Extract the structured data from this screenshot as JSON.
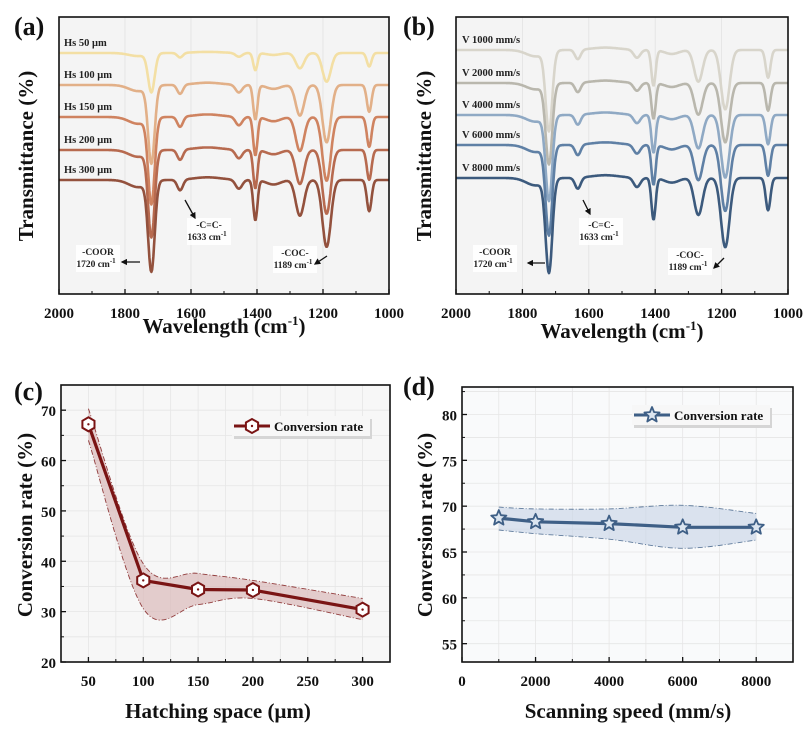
{
  "figure": {
    "panels": [
      "(a)",
      "(b)",
      "(c)",
      "(d)"
    ]
  },
  "chart_data": [
    {
      "id": "a",
      "type": "line",
      "panel_label": "(a)",
      "title": "",
      "xlabel": "Wavelength (cm-1)",
      "xlabel_main": "Wavelength (cm",
      "xlabel_sup": "-1",
      "xlabel_close": ")",
      "ylabel": "Transmittance (%)",
      "xlim": [
        2000,
        1000
      ],
      "x_ticks": [
        2000,
        1800,
        1600,
        1400,
        1200,
        1000
      ],
      "y_ticks": [],
      "grid": true,
      "series": [
        {
          "name": "Hs 50 μm",
          "color": "#f3dfa4",
          "scale": 0.45
        },
        {
          "name": "Hs 100 μm",
          "color": "#e2b088",
          "scale": 0.9
        },
        {
          "name": "Hs 150 μm",
          "color": "#cf8360",
          "scale": 1.0
        },
        {
          "name": "Hs 200 μm",
          "color": "#b76a4f",
          "scale": 1.0
        },
        {
          "name": "Hs 300 μm",
          "color": "#93513d",
          "scale": 1.05
        }
      ],
      "peaks": [
        {
          "x": 1720,
          "depth": 1.0,
          "width": 14
        },
        {
          "x": 1633,
          "depth": 0.12,
          "width": 12
        },
        {
          "x": 1455,
          "depth": 0.1,
          "width": 14
        },
        {
          "x": 1405,
          "depth": 0.45,
          "width": 9
        },
        {
          "x": 1270,
          "depth": 0.4,
          "width": 18
        },
        {
          "x": 1189,
          "depth": 0.75,
          "width": 18
        },
        {
          "x": 1060,
          "depth": 0.35,
          "width": 10
        }
      ],
      "annotations": [
        {
          "line1": "-COOR",
          "line2": "1720 cm",
          "sup": "-1",
          "peak": 1720
        },
        {
          "line1": "-C=C-",
          "line2": "1633 cm",
          "sup": "-1",
          "peak": 1633
        },
        {
          "line1": "-COC-",
          "line2": "1189 cm",
          "sup": "-1",
          "peak": 1189
        }
      ]
    },
    {
      "id": "b",
      "type": "line",
      "panel_label": "(b)",
      "title": "",
      "xlabel": "Wavelength (cm-1)",
      "xlabel_main": "Wavelength (cm",
      "xlabel_sup": "-1",
      "xlabel_close": ")",
      "ylabel": "Transmittance (%)",
      "xlim": [
        2000,
        1000
      ],
      "x_ticks": [
        2000,
        1800,
        1600,
        1400,
        1200,
        1000
      ],
      "y_ticks": [],
      "grid": true,
      "series": [
        {
          "name": "V 1000 mm/s",
          "color": "#d8d5cb",
          "scale": 0.9
        },
        {
          "name": "V 2000 mm/s",
          "color": "#b9b7ad",
          "scale": 0.9
        },
        {
          "name": "V 4000 mm/s",
          "color": "#8fa9c4",
          "scale": 0.95
        },
        {
          "name": "V 6000 mm/s",
          "color": "#5f80a5",
          "scale": 1.0
        },
        {
          "name": "V 8000 mm/s",
          "color": "#3c5a7d",
          "scale": 1.05
        }
      ],
      "peaks": [
        {
          "x": 1720,
          "depth": 1.0,
          "width": 14
        },
        {
          "x": 1633,
          "depth": 0.12,
          "width": 12
        },
        {
          "x": 1455,
          "depth": 0.1,
          "width": 14
        },
        {
          "x": 1405,
          "depth": 0.45,
          "width": 9
        },
        {
          "x": 1270,
          "depth": 0.4,
          "width": 18
        },
        {
          "x": 1189,
          "depth": 0.75,
          "width": 18
        },
        {
          "x": 1060,
          "depth": 0.35,
          "width": 10
        }
      ],
      "annotations": [
        {
          "line1": "-COOR",
          "line2": "1720 cm",
          "sup": "-1",
          "peak": 1720
        },
        {
          "line1": "-C=C-",
          "line2": "1633 cm",
          "sup": "-1",
          "peak": 1633
        },
        {
          "line1": "-COC-",
          "line2": "1189 cm",
          "sup": "-1",
          "peak": 1189
        }
      ]
    },
    {
      "id": "c",
      "type": "line",
      "panel_label": "(c)",
      "title": "",
      "xlabel": "Hatching space (μm)",
      "ylabel": "Conversion rate (%)",
      "xlim": [
        25,
        325
      ],
      "ylim": [
        20,
        75
      ],
      "x_ticks": [
        50,
        100,
        150,
        200,
        250,
        300
      ],
      "y_ticks": [
        20,
        30,
        40,
        50,
        60,
        70
      ],
      "grid": true,
      "legend": "top-right",
      "color": "#7a1414",
      "band_color": "#d9b5b5",
      "marker": "hexagon",
      "series": [
        {
          "name": "Conversion rate",
          "x": [
            50,
            100,
            150,
            200,
            300
          ],
          "y": [
            67.2,
            36.2,
            34.4,
            34.3,
            30.4
          ],
          "upper": [
            70.3,
            39.5,
            37.6,
            36.2,
            32.6
          ],
          "lower": [
            64.0,
            30.6,
            31.4,
            32.6,
            28.4
          ]
        }
      ]
    },
    {
      "id": "d",
      "type": "line",
      "panel_label": "(d)",
      "title": "",
      "xlabel": "Scanning speed (mm/s)",
      "ylabel": "Conversion rate (%)",
      "xlim": [
        0,
        9000
      ],
      "ylim": [
        53,
        83
      ],
      "x_ticks": [
        0,
        2000,
        4000,
        6000,
        8000
      ],
      "y_ticks": [
        55,
        60,
        65,
        70,
        75,
        80
      ],
      "grid": true,
      "legend": "top-right",
      "color": "#3e5f86",
      "band_color": "#c9d6e6",
      "marker": "star",
      "series": [
        {
          "name": "Conversion rate",
          "x": [
            1000,
            2000,
            4000,
            6000,
            8000
          ],
          "y": [
            68.7,
            68.3,
            68.1,
            67.7,
            67.7
          ],
          "upper": [
            69.9,
            69.7,
            69.7,
            70.1,
            69.2
          ],
          "lower": [
            67.4,
            67.0,
            66.4,
            65.4,
            66.3
          ]
        }
      ]
    }
  ]
}
